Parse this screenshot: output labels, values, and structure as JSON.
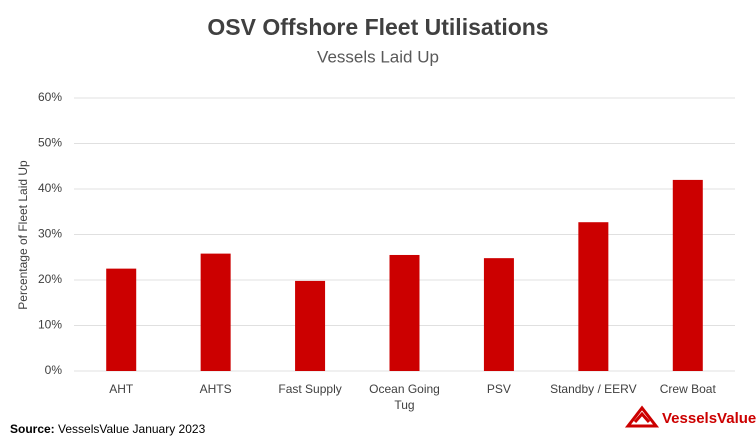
{
  "chart_data": {
    "type": "bar",
    "title": "OSV Offshore Fleet Utilisations",
    "subtitle": "Vessels Laid Up",
    "y_label": "Percentage of Fleet Laid Up",
    "categories": [
      "AHT",
      "AHTS",
      "Fast Supply",
      "Ocean Going Tug",
      "PSV",
      "Standby / EERV",
      "Crew Boat"
    ],
    "values": [
      22.5,
      25.8,
      19.8,
      25.5,
      24.8,
      32.7,
      42
    ],
    "color": "#cc0000",
    "ylim": [
      0,
      60
    ],
    "yticks": [
      {
        "value": 0,
        "label": "0%"
      },
      {
        "value": 10,
        "label": "10%"
      },
      {
        "value": 20,
        "label": "20%"
      },
      {
        "value": 30,
        "label": "30%"
      },
      {
        "value": 40,
        "label": "40%"
      },
      {
        "value": 50,
        "label": "50%"
      },
      {
        "value": 60,
        "label": "60%"
      }
    ],
    "grid": true
  },
  "footer": {
    "source_label": "Source:",
    "source_text": "VesselsValue January 2023",
    "logo": "VesselsValue"
  }
}
